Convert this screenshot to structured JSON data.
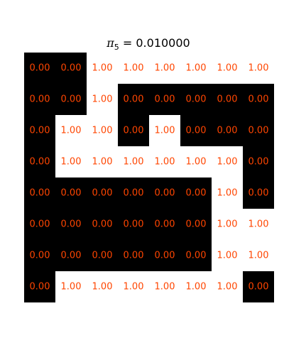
{
  "chart_data": {
    "type": "heatmap",
    "title": {
      "symbol": "π",
      "subscript": "5",
      "equals": " = ",
      "value": "0.010000"
    },
    "colormap": {
      "zero": "#000000",
      "one": "#ffffff"
    },
    "label_color": "#ff4500",
    "grid_on": false,
    "rows": 8,
    "cols": 8,
    "values": [
      [
        0,
        0,
        1,
        1,
        1,
        1,
        1,
        1
      ],
      [
        0,
        0,
        1,
        0,
        0,
        0,
        0,
        0
      ],
      [
        0,
        1,
        1,
        0,
        1,
        0,
        0,
        0
      ],
      [
        0,
        1,
        1,
        1,
        1,
        1,
        1,
        0
      ],
      [
        0,
        0,
        0,
        0,
        0,
        0,
        1,
        0
      ],
      [
        0,
        0,
        0,
        0,
        0,
        0,
        1,
        1
      ],
      [
        0,
        0,
        0,
        0,
        0,
        0,
        1,
        1
      ],
      [
        0,
        1,
        1,
        1,
        1,
        1,
        1,
        0
      ]
    ],
    "labels": [
      [
        "0.00",
        "0.00",
        "1.00",
        "1.00",
        "1.00",
        "1.00",
        "1.00",
        "1.00"
      ],
      [
        "0.00",
        "0.00",
        "1.00",
        "0.00",
        "0.00",
        "0.00",
        "0.00",
        "0.00"
      ],
      [
        "0.00",
        "1.00",
        "1.00",
        "0.00",
        "1.00",
        "0.00",
        "0.00",
        "0.00"
      ],
      [
        "0.00",
        "1.00",
        "1.00",
        "1.00",
        "1.00",
        "1.00",
        "1.00",
        "0.00"
      ],
      [
        "0.00",
        "0.00",
        "0.00",
        "0.00",
        "0.00",
        "0.00",
        "1.00",
        "0.00"
      ],
      [
        "0.00",
        "0.00",
        "0.00",
        "0.00",
        "0.00",
        "0.00",
        "1.00",
        "1.00"
      ],
      [
        "0.00",
        "0.00",
        "0.00",
        "0.00",
        "0.00",
        "0.00",
        "1.00",
        "1.00"
      ],
      [
        "0.00",
        "1.00",
        "1.00",
        "1.00",
        "1.00",
        "1.00",
        "1.00",
        "0.00"
      ]
    ]
  }
}
